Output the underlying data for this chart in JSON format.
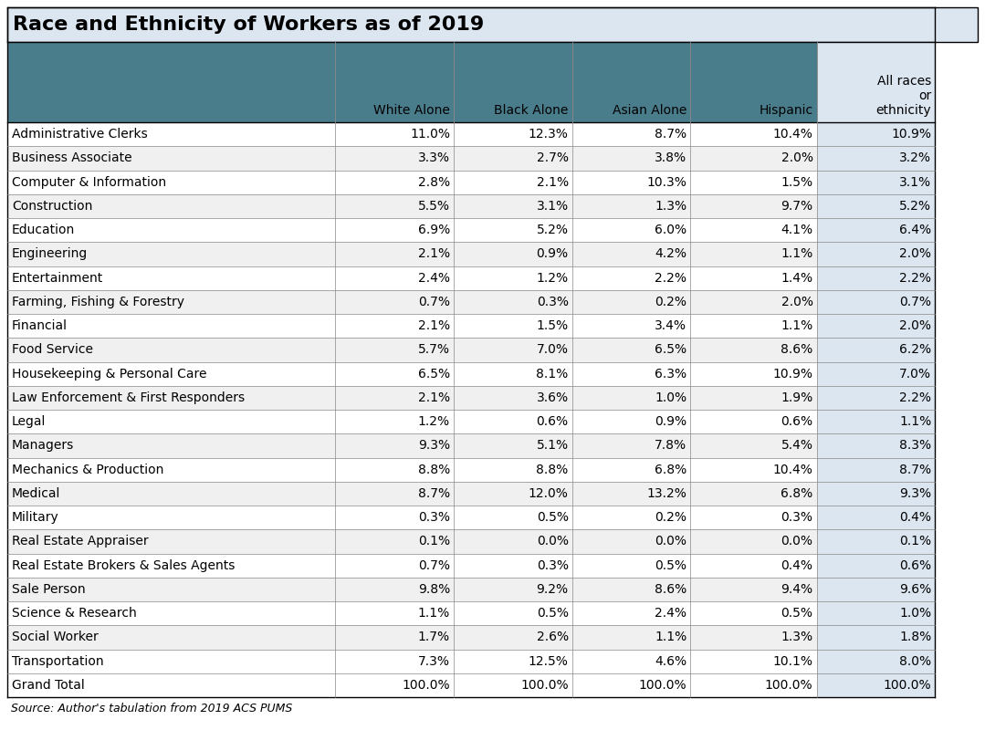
{
  "title": "Race and Ethnicity of Workers as of 2019",
  "col_headers": [
    "",
    "White Alone",
    "Black Alone",
    "Asian Alone",
    "Hispanic",
    "All races\nor\nethnicity"
  ],
  "rows": [
    [
      "Administrative Clerks",
      "11.0%",
      "12.3%",
      "8.7%",
      "10.4%",
      "10.9%"
    ],
    [
      "Business Associate",
      "3.3%",
      "2.7%",
      "3.8%",
      "2.0%",
      "3.2%"
    ],
    [
      "Computer & Information",
      "2.8%",
      "2.1%",
      "10.3%",
      "1.5%",
      "3.1%"
    ],
    [
      "Construction",
      "5.5%",
      "3.1%",
      "1.3%",
      "9.7%",
      "5.2%"
    ],
    [
      "Education",
      "6.9%",
      "5.2%",
      "6.0%",
      "4.1%",
      "6.4%"
    ],
    [
      "Engineering",
      "2.1%",
      "0.9%",
      "4.2%",
      "1.1%",
      "2.0%"
    ],
    [
      "Entertainment",
      "2.4%",
      "1.2%",
      "2.2%",
      "1.4%",
      "2.2%"
    ],
    [
      "Farming, Fishing & Forestry",
      "0.7%",
      "0.3%",
      "0.2%",
      "2.0%",
      "0.7%"
    ],
    [
      "Financial",
      "2.1%",
      "1.5%",
      "3.4%",
      "1.1%",
      "2.0%"
    ],
    [
      "Food Service",
      "5.7%",
      "7.0%",
      "6.5%",
      "8.6%",
      "6.2%"
    ],
    [
      "Housekeeping & Personal Care",
      "6.5%",
      "8.1%",
      "6.3%",
      "10.9%",
      "7.0%"
    ],
    [
      "Law Enforcement & First Responders",
      "2.1%",
      "3.6%",
      "1.0%",
      "1.9%",
      "2.2%"
    ],
    [
      "Legal",
      "1.2%",
      "0.6%",
      "0.9%",
      "0.6%",
      "1.1%"
    ],
    [
      "Managers",
      "9.3%",
      "5.1%",
      "7.8%",
      "5.4%",
      "8.3%"
    ],
    [
      "Mechanics & Production",
      "8.8%",
      "8.8%",
      "6.8%",
      "10.4%",
      "8.7%"
    ],
    [
      "Medical",
      "8.7%",
      "12.0%",
      "13.2%",
      "6.8%",
      "9.3%"
    ],
    [
      "Military",
      "0.3%",
      "0.5%",
      "0.2%",
      "0.3%",
      "0.4%"
    ],
    [
      "Real Estate Appraiser",
      "0.1%",
      "0.0%",
      "0.0%",
      "0.0%",
      "0.1%"
    ],
    [
      "Real Estate Brokers & Sales Agents",
      "0.7%",
      "0.3%",
      "0.5%",
      "0.4%",
      "0.6%"
    ],
    [
      "Sale Person",
      "9.8%",
      "9.2%",
      "8.6%",
      "9.4%",
      "9.6%"
    ],
    [
      "Science & Research",
      "1.1%",
      "0.5%",
      "2.4%",
      "0.5%",
      "1.0%"
    ],
    [
      "Social Worker",
      "1.7%",
      "2.6%",
      "1.1%",
      "1.3%",
      "1.8%"
    ],
    [
      "Transportation",
      "7.3%",
      "12.5%",
      "4.6%",
      "10.1%",
      "8.0%"
    ],
    [
      "Grand Total",
      "100.0%",
      "100.0%",
      "100.0%",
      "100.0%",
      "100.0%"
    ]
  ],
  "source": "Source: Author's tabulation from 2019 ACS PUMS",
  "title_bg": "#dce6f1",
  "header_bg": "#4a7d8c",
  "header_text": "#000000",
  "row_bg_odd": "#ffffff",
  "row_bg_even": "#f0f0f0",
  "last_col_bg": "#dce6f1",
  "grand_total_bg": "#ffffff",
  "border_color": "#888888",
  "cell_text_color": "#000000",
  "title_fontsize": 16,
  "header_fontsize": 10,
  "cell_fontsize": 10,
  "source_fontsize": 9
}
